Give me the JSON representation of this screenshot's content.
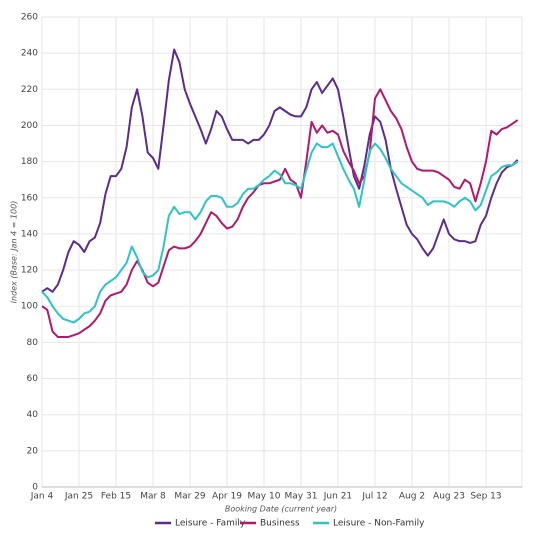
{
  "chart_data": {
    "type": "line",
    "y_label": "Index (Base: Jan 4 = 100)",
    "x_label": "Booking Date (current year)",
    "categories": [
      "Jan 4",
      null,
      null,
      null,
      null,
      null,
      null,
      "Jan 25",
      null,
      null,
      null,
      null,
      null,
      null,
      "Feb 15",
      null,
      null,
      null,
      null,
      null,
      null,
      "Mar 8",
      null,
      null,
      null,
      null,
      null,
      null,
      "Mar 29",
      null,
      null,
      null,
      null,
      null,
      null,
      "Apr 19",
      null,
      null,
      null,
      null,
      null,
      null,
      "May 10",
      null,
      null,
      null,
      null,
      null,
      null,
      "May 31",
      null,
      null,
      null,
      null,
      null,
      null,
      "Jun 21",
      null,
      null,
      null,
      null,
      null,
      null,
      "Jul 12",
      null,
      null,
      null,
      null,
      null,
      null,
      "Aug 2",
      null,
      null,
      null,
      null,
      null,
      null,
      "Aug 23",
      null,
      null,
      null,
      null,
      null,
      null,
      "Sep 13",
      null,
      null,
      null,
      null,
      null,
      null
    ],
    "series": [
      {
        "name": "Leisure - Family",
        "color": "#5b2c8f",
        "values": [
          108,
          110,
          108,
          112,
          120,
          130,
          136,
          134,
          130,
          136,
          138,
          146,
          162,
          172,
          172,
          176,
          188,
          210,
          220,
          205,
          185,
          182,
          176,
          200,
          225,
          242,
          235,
          220,
          212,
          205,
          198,
          190,
          198,
          208,
          205,
          198,
          192,
          192,
          192,
          190,
          192,
          192,
          195,
          200,
          208,
          210,
          208,
          206,
          205,
          205,
          210,
          220,
          224,
          218,
          222,
          226,
          220,
          205,
          188,
          172,
          165,
          178,
          195,
          205,
          202,
          192,
          176,
          165,
          155,
          145,
          140,
          137,
          132,
          128,
          132,
          140,
          148,
          140,
          137,
          136,
          136,
          135,
          136,
          145,
          150,
          160,
          168,
          174,
          177,
          178,
          181
        ]
      },
      {
        "name": "Business",
        "color": "#b5186b",
        "values": [
          100,
          98,
          86,
          83,
          83,
          83,
          84,
          85,
          87,
          89,
          92,
          96,
          103,
          106,
          107,
          108,
          112,
          120,
          125,
          120,
          113,
          111,
          113,
          122,
          131,
          133,
          132,
          132,
          133,
          136,
          140,
          146,
          152,
          150,
          146,
          143,
          144,
          148,
          155,
          160,
          163,
          167,
          168,
          168,
          169,
          170,
          176,
          170,
          168,
          160,
          180,
          202,
          196,
          200,
          196,
          197,
          195,
          186,
          180,
          175,
          168,
          172,
          185,
          215,
          220,
          214,
          208,
          204,
          198,
          188,
          180,
          176,
          175,
          175,
          175,
          174,
          172,
          170,
          166,
          165,
          170,
          168,
          158,
          168,
          180,
          197,
          195,
          198,
          199,
          201,
          203
        ]
      },
      {
        "name": "Leisure - Non-Family",
        "color": "#2cc5c5",
        "values": [
          108,
          105,
          100,
          96,
          93,
          92,
          91,
          93,
          96,
          97,
          100,
          108,
          112,
          114,
          116,
          120,
          124,
          133,
          127,
          119,
          116,
          117,
          120,
          133,
          150,
          155,
          151,
          152,
          152,
          148,
          152,
          158,
          161,
          161,
          160,
          155,
          155,
          157,
          162,
          165,
          165,
          167,
          170,
          172,
          175,
          173,
          168,
          168,
          167,
          165,
          175,
          185,
          190,
          188,
          188,
          190,
          183,
          176,
          170,
          165,
          155,
          170,
          186,
          190,
          187,
          182,
          176,
          172,
          168,
          166,
          164,
          162,
          160,
          156,
          158,
          158,
          158,
          157,
          155,
          158,
          160,
          158,
          153,
          156,
          164,
          172,
          174,
          177,
          178,
          178,
          180
        ]
      }
    ],
    "ylim": [
      0,
      260
    ],
    "yticks": [
      0,
      20,
      40,
      60,
      80,
      100,
      120,
      140,
      160,
      180,
      200,
      220,
      240,
      260
    ],
    "grid": true
  }
}
